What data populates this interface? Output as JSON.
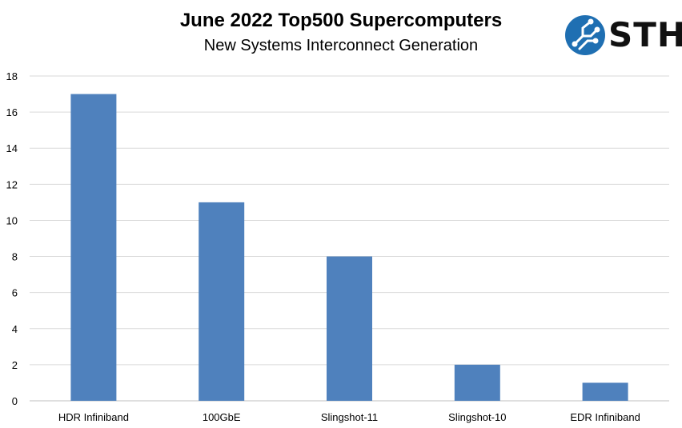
{
  "header": {
    "title": "June 2022 Top500 Supercomputers",
    "subtitle": "New Systems Interconnect Generation"
  },
  "logo": {
    "text": "STH",
    "icon": "circuit-globe-icon",
    "color": "#1f6fb2"
  },
  "chart_data": {
    "type": "bar",
    "title": "June 2022 Top500 Supercomputers",
    "subtitle": "New Systems Interconnect Generation",
    "categories": [
      "HDR Infiniband",
      "100GbE",
      "Slingshot-11",
      "Slingshot-10",
      "EDR Infiniband"
    ],
    "values": [
      17,
      11,
      8,
      2,
      1
    ],
    "ylim": [
      0,
      18
    ],
    "yticks": [
      0,
      2,
      4,
      6,
      8,
      10,
      12,
      14,
      16,
      18
    ],
    "grid": true,
    "legend": "none",
    "bar_color": "#4f81bd"
  }
}
